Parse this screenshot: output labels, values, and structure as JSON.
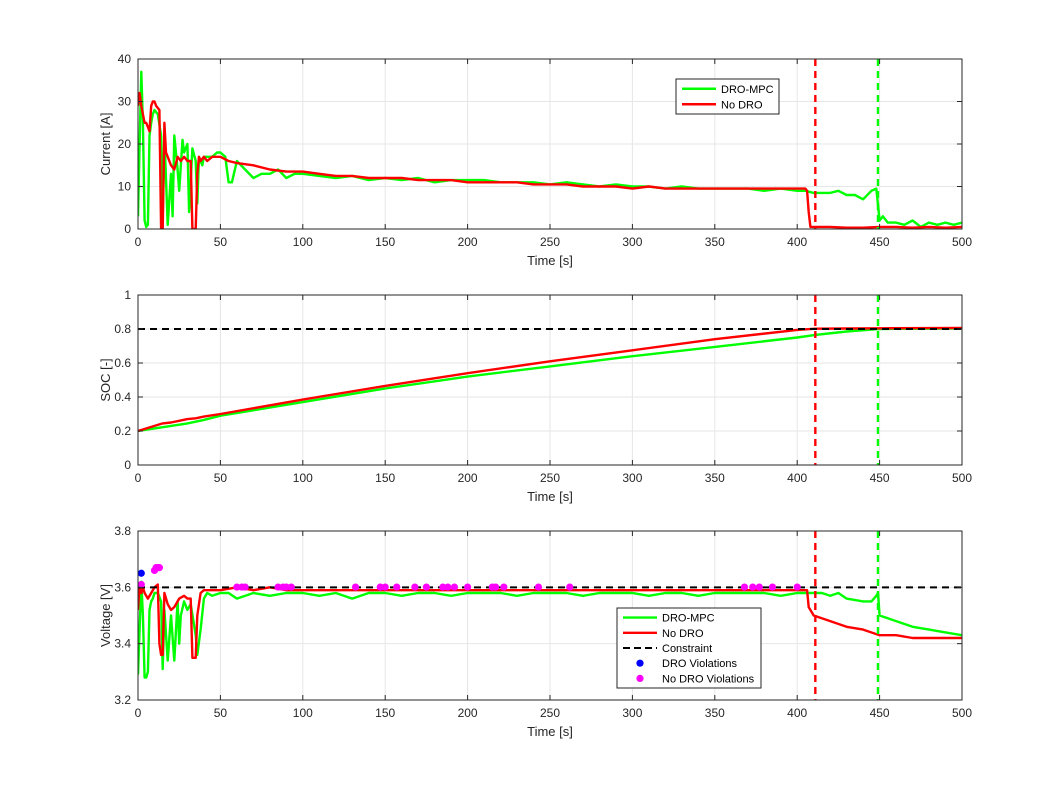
{
  "chart_data": [
    {
      "type": "line",
      "id": "current",
      "xlabel": "Time [s]",
      "ylabel": "Current [A]",
      "xlim": [
        0,
        500
      ],
      "ylim": [
        0,
        40
      ],
      "xticks": [
        0,
        50,
        100,
        150,
        200,
        250,
        300,
        350,
        400,
        450,
        500
      ],
      "yticks": [
        0,
        10,
        20,
        30,
        40
      ],
      "ytick_labels": [
        "0",
        "10",
        "20",
        "30",
        "40"
      ],
      "grid": true,
      "legend": {
        "location": "top-right",
        "entries": [
          {
            "label": "DRO-MPC",
            "kind": "line",
            "color": "#00ff00"
          },
          {
            "label": "No DRO",
            "kind": "line",
            "color": "#ff0000"
          }
        ]
      },
      "vlines": [
        {
          "x": 411,
          "color": "#ff0000",
          "style": "dashed"
        },
        {
          "x": 449,
          "color": "#00ff00",
          "style": "dashed"
        }
      ],
      "series": [
        {
          "name": "DRO-MPC",
          "color": "#00ff00",
          "x": [
            0,
            1,
            2,
            3,
            4,
            5,
            6,
            7,
            8,
            9,
            10,
            12,
            14,
            15,
            16,
            18,
            20,
            21,
            22,
            24,
            25,
            27,
            28,
            30,
            31,
            33,
            35,
            36,
            37,
            39,
            40,
            43,
            45,
            48,
            50,
            53,
            55,
            57,
            60,
            65,
            70,
            75,
            80,
            85,
            90,
            95,
            100,
            110,
            120,
            130,
            140,
            150,
            160,
            170,
            180,
            190,
            200,
            210,
            220,
            230,
            240,
            250,
            260,
            270,
            280,
            290,
            300,
            310,
            320,
            330,
            340,
            350,
            360,
            370,
            380,
            390,
            400,
            405,
            410,
            415,
            420,
            425,
            430,
            435,
            440,
            445,
            448,
            450,
            452,
            455,
            460,
            465,
            470,
            475,
            480,
            485,
            490,
            495,
            500
          ],
          "values": [
            3,
            20,
            37,
            25,
            2,
            0.5,
            1,
            22,
            25,
            27,
            28,
            27,
            22,
            2,
            22,
            1,
            13,
            3,
            22,
            14,
            9,
            21,
            18,
            20,
            4,
            19,
            16,
            6,
            17,
            15,
            17,
            17,
            17,
            18,
            18,
            17,
            11,
            11,
            16,
            14,
            12,
            13,
            13,
            14,
            12,
            13,
            13,
            12.5,
            12,
            12.5,
            11.5,
            12,
            11.5,
            12,
            11,
            11.5,
            11.5,
            11.5,
            11,
            11,
            11,
            10.5,
            11,
            10.5,
            10,
            10.5,
            10,
            10,
            9.5,
            10,
            9.5,
            9.5,
            9.5,
            9.5,
            9,
            9.5,
            9,
            9,
            8.5,
            8.5,
            8.5,
            9,
            8,
            8,
            7,
            9,
            9.5,
            2,
            3,
            1.5,
            1.5,
            1,
            2,
            0.5,
            1.5,
            1,
            1.5,
            1,
            1.5
          ]
        },
        {
          "name": "No DRO",
          "color": "#ff0000",
          "x": [
            0,
            1,
            2,
            3,
            4,
            5,
            6,
            7,
            8,
            9,
            10,
            11,
            13,
            14,
            15,
            16,
            17,
            18,
            20,
            22,
            24,
            26,
            28,
            30,
            32,
            33,
            34,
            35,
            36,
            37,
            38,
            40,
            42,
            45,
            50,
            55,
            60,
            70,
            80,
            90,
            100,
            110,
            120,
            130,
            140,
            150,
            160,
            170,
            180,
            190,
            200,
            210,
            220,
            230,
            240,
            250,
            260,
            270,
            280,
            290,
            300,
            310,
            320,
            330,
            340,
            350,
            360,
            370,
            380,
            390,
            400,
            405,
            406,
            407,
            408,
            410,
            420,
            430,
            440,
            450,
            460,
            470,
            480,
            490,
            500
          ],
          "values": [
            29,
            32,
            29,
            27,
            25,
            25,
            24,
            23,
            29,
            30,
            30,
            29,
            28,
            0,
            0,
            25,
            18,
            17,
            15,
            14,
            17,
            16,
            17,
            16,
            16,
            0,
            0,
            0,
            13,
            17,
            16,
            17,
            16,
            17,
            17,
            16,
            15.5,
            15,
            14,
            13.5,
            13.5,
            13,
            12.5,
            12.5,
            12,
            12,
            12,
            11.5,
            11.5,
            11.5,
            11,
            11,
            11,
            11,
            10.5,
            10.5,
            10.5,
            10,
            10,
            10,
            9.5,
            10,
            9.5,
            9.5,
            9.5,
            9.5,
            9.5,
            9.5,
            9.5,
            9.5,
            9.5,
            9.5,
            9,
            4,
            0.5,
            0.5,
            0.5,
            0.3,
            0.3,
            0.5,
            0.5,
            0.3,
            0.5,
            0.3,
            0.5
          ]
        }
      ]
    },
    {
      "type": "line",
      "id": "soc",
      "xlabel": "Time [s]",
      "ylabel": "SOC [-]",
      "xlim": [
        0,
        500
      ],
      "ylim": [
        0,
        1
      ],
      "xticks": [
        0,
        50,
        100,
        150,
        200,
        250,
        300,
        350,
        400,
        450,
        500
      ],
      "yticks": [
        0,
        0.2,
        0.4,
        0.6,
        0.8,
        1
      ],
      "ytick_labels": [
        "0",
        "0.2",
        "0.4",
        "0.6",
        "0.8",
        "1"
      ],
      "grid": true,
      "hlines": [
        {
          "y": 0.8,
          "color": "#000000",
          "style": "dashed"
        }
      ],
      "vlines": [
        {
          "x": 411,
          "color": "#ff0000",
          "style": "dashed"
        },
        {
          "x": 449,
          "color": "#00ff00",
          "style": "dashed"
        }
      ],
      "series": [
        {
          "name": "DRO-MPC",
          "color": "#00ff00",
          "x": [
            0,
            10,
            20,
            30,
            40,
            50,
            100,
            150,
            200,
            250,
            300,
            350,
            400,
            411,
            430,
            449,
            460,
            480,
            500
          ],
          "values": [
            0.2,
            0.215,
            0.23,
            0.245,
            0.265,
            0.29,
            0.37,
            0.45,
            0.52,
            0.58,
            0.64,
            0.695,
            0.75,
            0.765,
            0.785,
            0.8,
            0.801,
            0.802,
            0.803
          ]
        },
        {
          "name": "No DRO",
          "color": "#ff0000",
          "x": [
            0,
            10,
            15,
            20,
            25,
            30,
            35,
            40,
            50,
            100,
            150,
            200,
            250,
            300,
            350,
            400,
            411,
            430,
            450,
            480,
            500
          ],
          "values": [
            0.2,
            0.23,
            0.245,
            0.25,
            0.26,
            0.27,
            0.275,
            0.285,
            0.3,
            0.385,
            0.465,
            0.54,
            0.61,
            0.675,
            0.74,
            0.795,
            0.802,
            0.803,
            0.804,
            0.805,
            0.806
          ]
        }
      ]
    },
    {
      "type": "line",
      "id": "voltage",
      "xlabel": "Time [s]",
      "ylabel": "Voltage [V]",
      "xlim": [
        0,
        500
      ],
      "ylim": [
        3.2,
        3.8
      ],
      "xticks": [
        0,
        50,
        100,
        150,
        200,
        250,
        300,
        350,
        400,
        450,
        500
      ],
      "yticks": [
        3.2,
        3.4,
        3.6,
        3.8
      ],
      "ytick_labels": [
        "3.2",
        "3.4",
        "3.6",
        "3.8"
      ],
      "grid": true,
      "hlines": [
        {
          "y": 3.6,
          "color": "#000000",
          "style": "dashed"
        }
      ],
      "vlines": [
        {
          "x": 411,
          "color": "#ff0000",
          "style": "dashed"
        },
        {
          "x": 449,
          "color": "#00ff00",
          "style": "dashed"
        }
      ],
      "legend": {
        "location": "lower-right",
        "entries": [
          {
            "label": "DRO-MPC",
            "kind": "line",
            "color": "#00ff00"
          },
          {
            "label": "No DRO",
            "kind": "line",
            "color": "#ff0000"
          },
          {
            "label": "Constraint",
            "kind": "dashed",
            "color": "#000000"
          },
          {
            "label": "DRO Violations",
            "kind": "marker",
            "color": "#0000ff"
          },
          {
            "label": "No DRO Violations",
            "kind": "marker",
            "color": "#ff00ff"
          }
        ]
      },
      "series": [
        {
          "name": "DRO-MPC",
          "color": "#00ff00",
          "x": [
            0,
            1,
            2,
            3,
            4,
            5,
            6,
            7,
            8,
            9,
            10,
            12,
            14,
            15,
            16,
            18,
            20,
            22,
            24,
            25,
            26,
            28,
            30,
            32,
            35,
            36,
            38,
            40,
            42,
            45,
            50,
            55,
            60,
            70,
            80,
            90,
            100,
            110,
            120,
            130,
            140,
            150,
            160,
            170,
            180,
            190,
            200,
            210,
            220,
            230,
            240,
            250,
            260,
            270,
            280,
            290,
            300,
            310,
            320,
            330,
            340,
            350,
            360,
            370,
            380,
            390,
            400,
            405,
            410,
            415,
            420,
            425,
            430,
            440,
            445,
            448,
            449,
            450,
            455,
            460,
            470,
            480,
            490,
            500
          ],
          "values": [
            3.29,
            3.45,
            3.62,
            3.5,
            3.28,
            3.28,
            3.3,
            3.52,
            3.55,
            3.56,
            3.58,
            3.58,
            3.55,
            3.31,
            3.52,
            3.34,
            3.5,
            3.34,
            3.55,
            3.4,
            3.5,
            3.55,
            3.52,
            3.54,
            3.43,
            3.36,
            3.45,
            3.56,
            3.58,
            3.57,
            3.58,
            3.58,
            3.56,
            3.58,
            3.57,
            3.58,
            3.58,
            3.57,
            3.58,
            3.56,
            3.58,
            3.58,
            3.57,
            3.58,
            3.58,
            3.57,
            3.58,
            3.58,
            3.58,
            3.57,
            3.58,
            3.58,
            3.58,
            3.57,
            3.58,
            3.58,
            3.58,
            3.57,
            3.58,
            3.58,
            3.57,
            3.58,
            3.58,
            3.58,
            3.58,
            3.57,
            3.58,
            3.58,
            3.58,
            3.58,
            3.57,
            3.58,
            3.56,
            3.55,
            3.55,
            3.57,
            3.58,
            3.5,
            3.49,
            3.48,
            3.46,
            3.45,
            3.44,
            3.43
          ]
        },
        {
          "name": "No DRO",
          "color": "#ff0000",
          "x": [
            0,
            1,
            2,
            3,
            4,
            6,
            8,
            10,
            12,
            13,
            14,
            15,
            16,
            18,
            20,
            22,
            25,
            28,
            30,
            32,
            33,
            34,
            35,
            36,
            38,
            40,
            45,
            50,
            60,
            70,
            80,
            90,
            100,
            150,
            200,
            250,
            300,
            350,
            400,
            405,
            406,
            407,
            410,
            420,
            430,
            440,
            450,
            460,
            470,
            480,
            490,
            500
          ],
          "values": [
            3.52,
            3.61,
            3.58,
            3.6,
            3.58,
            3.56,
            3.58,
            3.6,
            3.61,
            3.4,
            3.36,
            3.36,
            3.58,
            3.54,
            3.52,
            3.53,
            3.56,
            3.57,
            3.56,
            3.56,
            3.35,
            3.35,
            3.35,
            3.5,
            3.58,
            3.59,
            3.59,
            3.59,
            3.6,
            3.59,
            3.6,
            3.59,
            3.59,
            3.59,
            3.59,
            3.59,
            3.59,
            3.59,
            3.59,
            3.59,
            3.59,
            3.53,
            3.5,
            3.48,
            3.46,
            3.45,
            3.43,
            3.43,
            3.42,
            3.42,
            3.42,
            3.42
          ]
        }
      ],
      "markers": [
        {
          "name": "DRO Violations",
          "color": "#0000ff",
          "points": [
            [
              2,
              3.65
            ]
          ]
        },
        {
          "name": "No DRO Violations",
          "color": "#ff00ff",
          "points": [
            [
              2,
              3.61
            ],
            [
              10,
              3.66
            ],
            [
              11,
              3.67
            ],
            [
              12,
              3.67
            ],
            [
              13,
              3.67
            ],
            [
              60,
              3.601
            ],
            [
              63,
              3.601
            ],
            [
              65,
              3.601
            ],
            [
              85,
              3.601
            ],
            [
              88,
              3.601
            ],
            [
              90,
              3.601
            ],
            [
              93,
              3.601
            ],
            [
              132,
              3.601
            ],
            [
              147,
              3.601
            ],
            [
              150,
              3.601
            ],
            [
              157,
              3.601
            ],
            [
              168,
              3.601
            ],
            [
              175,
              3.601
            ],
            [
              185,
              3.601
            ],
            [
              188,
              3.601
            ],
            [
              192,
              3.601
            ],
            [
              200,
              3.601
            ],
            [
              215,
              3.601
            ],
            [
              217,
              3.601
            ],
            [
              222,
              3.601
            ],
            [
              243,
              3.601
            ],
            [
              262,
              3.601
            ],
            [
              368,
              3.601
            ],
            [
              373,
              3.601
            ],
            [
              377,
              3.601
            ],
            [
              385,
              3.601
            ],
            [
              400,
              3.601
            ]
          ]
        }
      ]
    }
  ]
}
